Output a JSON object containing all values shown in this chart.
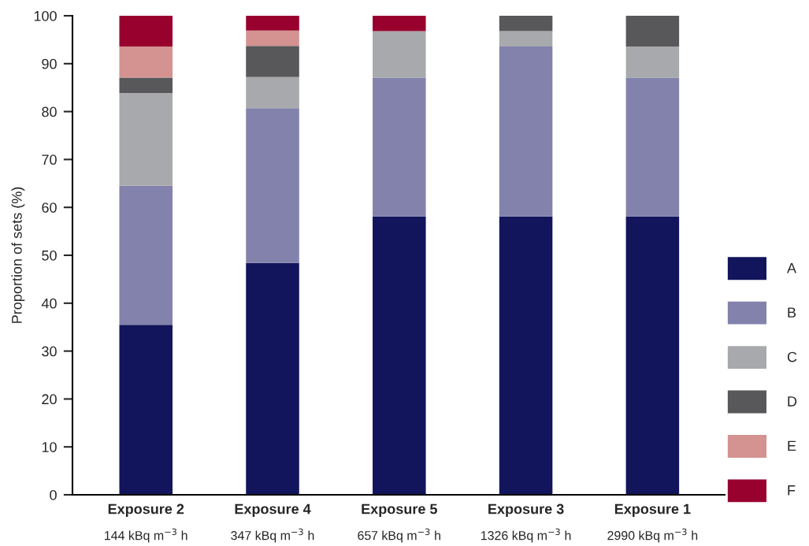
{
  "chart_data": {
    "type": "bar",
    "stacked": true,
    "ylabel": "Proportion of sets (%)",
    "categories": [
      "Exposure 2\n144 kBq m$^{−3}$ h",
      "Exposure 4\n347 kBq m$^{−3}$ h",
      "Exposure 5\n657 kBq m$^{−3}$ h",
      "Exposure 3\n1326 kBq m$^{−3}$ h",
      "Exposure 1\n2990 kBq m$^{−3}$ h"
    ],
    "series": [
      {
        "name": "A",
        "color": "#12155c",
        "values": [
          35.5,
          48.4,
          58.1,
          58.1,
          58.1
        ]
      },
      {
        "name": "B",
        "color": "#8382ac",
        "values": [
          29.0,
          32.3,
          29.0,
          35.5,
          29.0
        ]
      },
      {
        "name": "C",
        "color": "#a8a9ac",
        "values": [
          19.4,
          6.5,
          9.7,
          3.2,
          6.5
        ]
      },
      {
        "name": "D",
        "color": "#58585a",
        "values": [
          3.2,
          6.5,
          null,
          3.2,
          6.5
        ]
      },
      {
        "name": "E",
        "color": "#d49290",
        "values": [
          6.5,
          3.2,
          null,
          null,
          null
        ]
      },
      {
        "name": "F",
        "color": "#98002e",
        "values": [
          6.5,
          3.2,
          3.2,
          null,
          null
        ]
      }
    ],
    "ylim": [
      0,
      100
    ],
    "yticks": [
      0,
      10,
      20,
      30,
      40,
      50,
      60,
      70,
      80,
      90,
      100
    ],
    "grid": false,
    "legend": "bottom right"
  }
}
